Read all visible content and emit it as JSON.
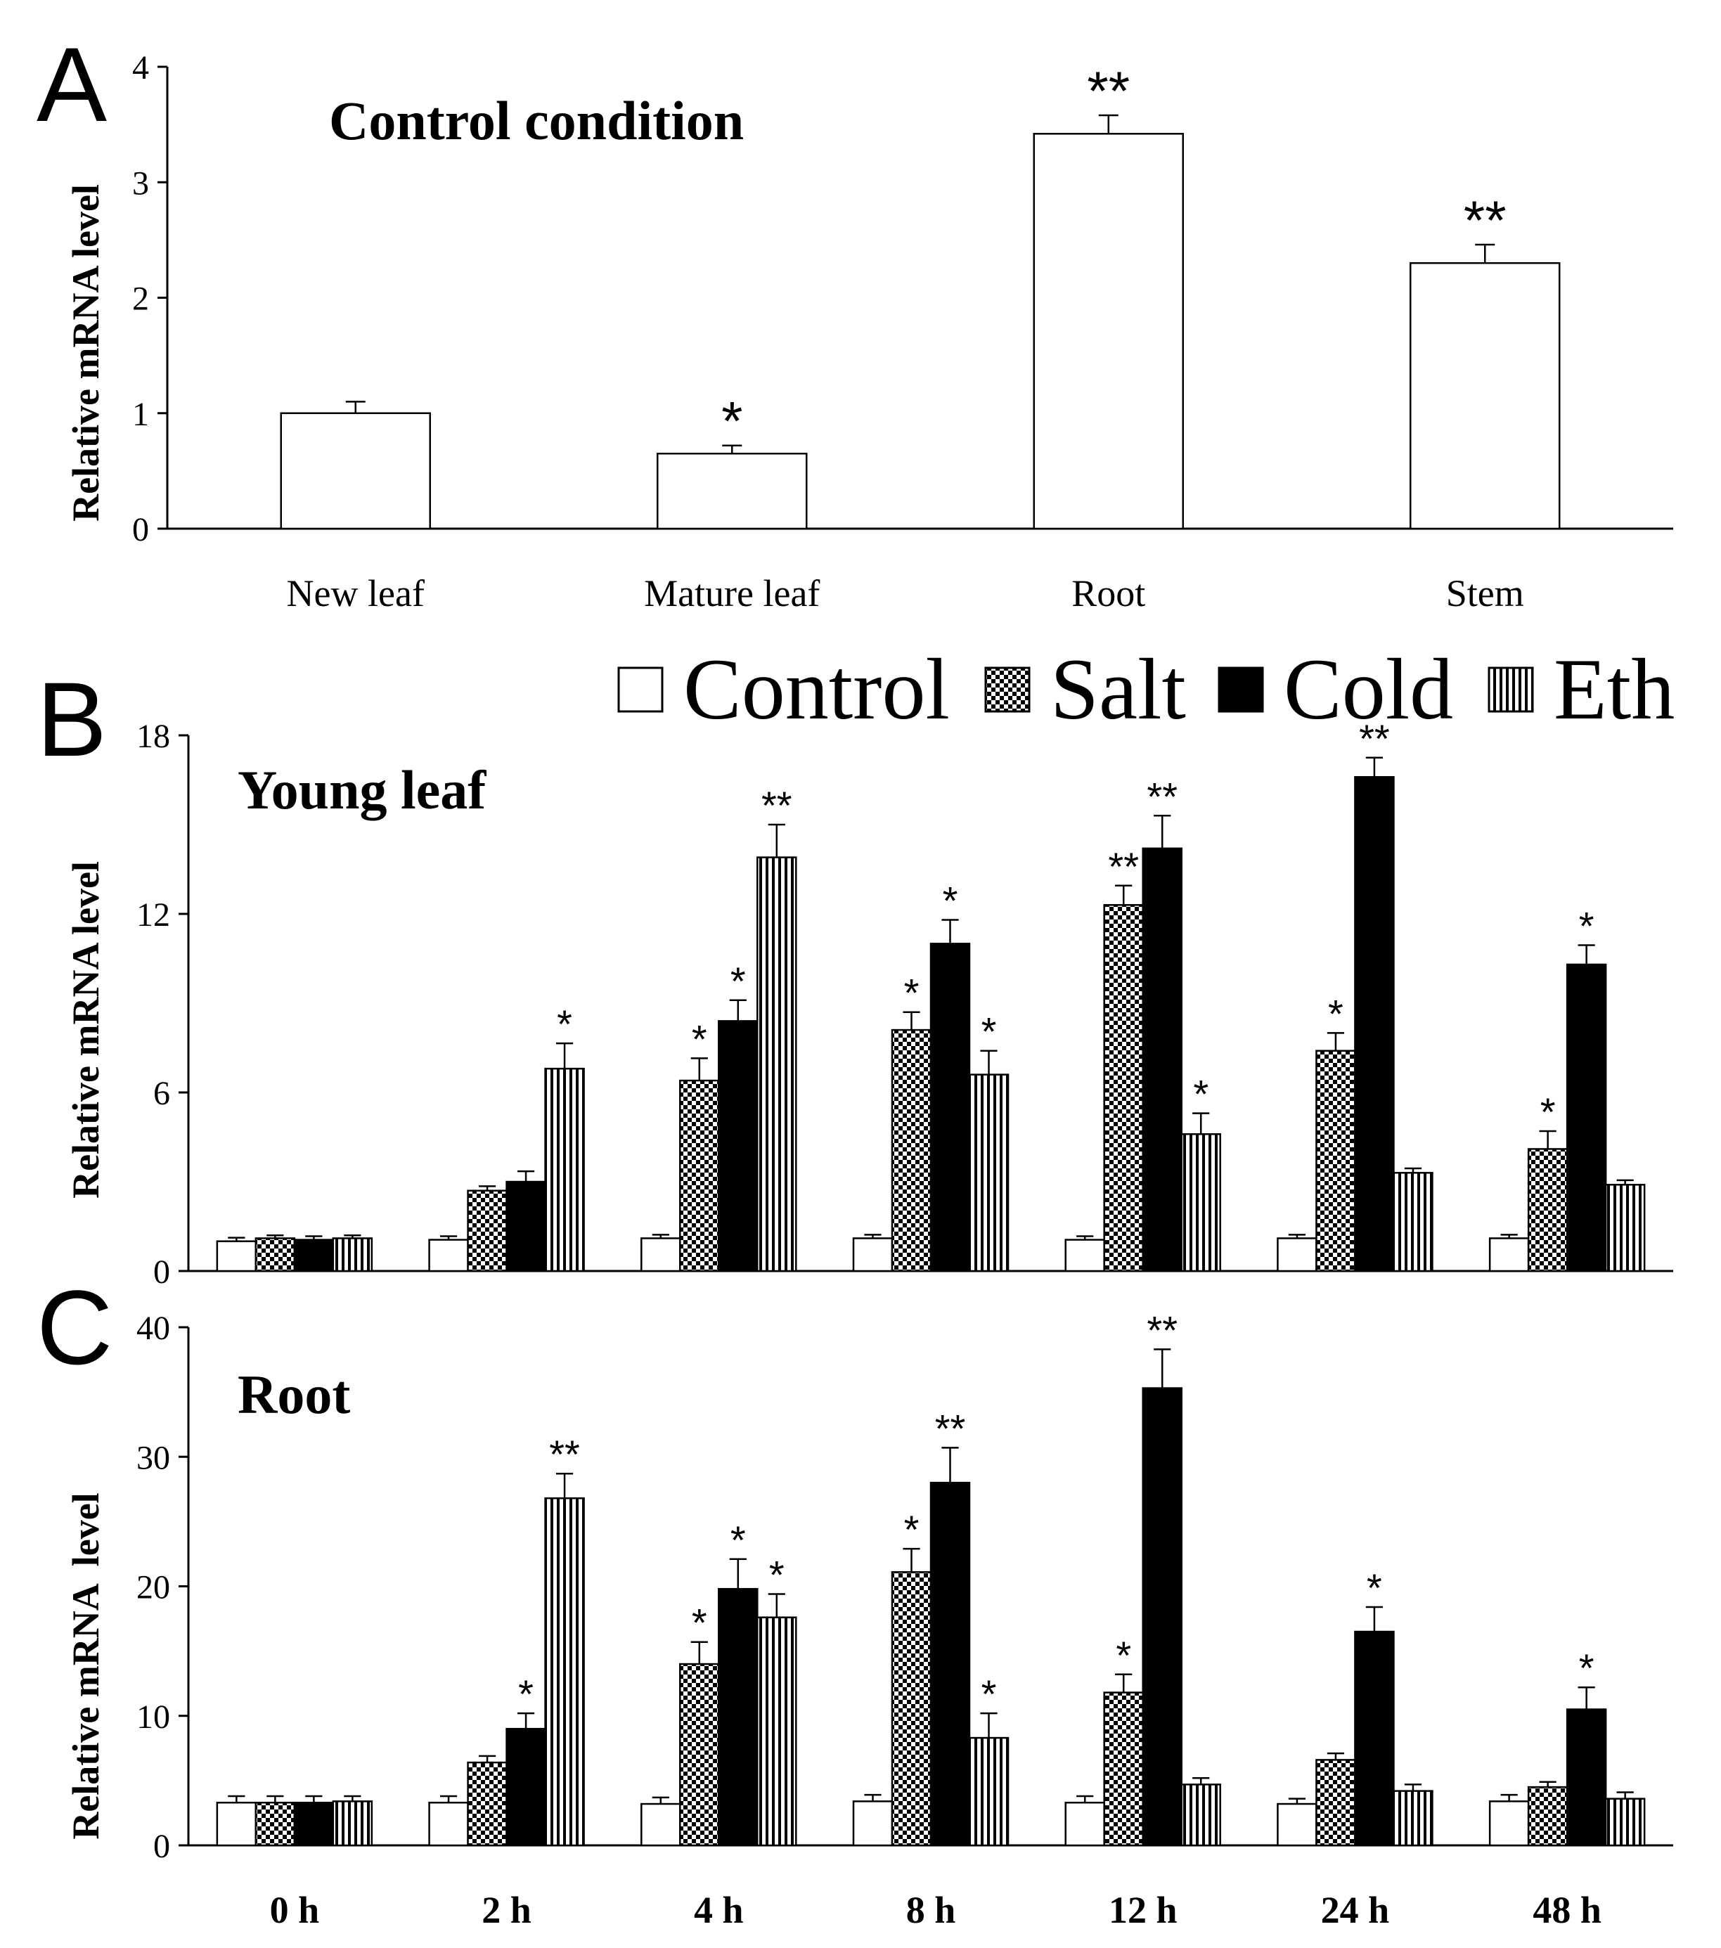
{
  "colors": {
    "ink": "#000000",
    "paper": "#ffffff"
  },
  "legend": {
    "entries": [
      {
        "label": "Control",
        "pattern": "white"
      },
      {
        "label": "Salt",
        "pattern": "checker"
      },
      {
        "label": "Cold",
        "pattern": "black"
      },
      {
        "label": "Eth",
        "pattern": "vstripes"
      }
    ]
  },
  "chart_data": [
    {
      "panel": "A",
      "type": "bar",
      "title": "Control condition",
      "ylabel": "Relative mRNA level",
      "xlabel": "",
      "ylim": [
        0,
        4
      ],
      "yticks": [
        0,
        1,
        2,
        3,
        4
      ],
      "categories": [
        "New leaf",
        "Mature leaf",
        "Root",
        "Stem"
      ],
      "series": [
        {
          "name": "Control",
          "pattern": "white",
          "values": [
            1.0,
            0.65,
            3.42,
            2.3
          ],
          "errors": [
            0.1,
            0.07,
            0.16,
            0.16
          ],
          "marks": [
            "",
            "*",
            "**",
            "**"
          ]
        }
      ]
    },
    {
      "panel": "B",
      "type": "bar",
      "title": "Young leaf",
      "ylabel": "Relative mRNA level",
      "xlabel": "",
      "ylim": [
        0,
        18
      ],
      "yticks": [
        0,
        6,
        12,
        18
      ],
      "categories": [
        "0 h",
        "2 h",
        "4 h",
        "8 h",
        "12 h",
        "24 h",
        "48 h"
      ],
      "show_category_labels": false,
      "series": [
        {
          "name": "Control",
          "pattern": "white",
          "values": [
            1.0,
            1.05,
            1.1,
            1.1,
            1.05,
            1.1,
            1.1
          ],
          "errors": [
            0.12,
            0.12,
            0.12,
            0.12,
            0.12,
            0.12,
            0.12
          ],
          "marks": [
            "",
            "",
            "",
            "",
            "",
            "",
            ""
          ]
        },
        {
          "name": "Salt",
          "pattern": "checker",
          "values": [
            1.1,
            2.7,
            6.4,
            8.1,
            12.3,
            7.4,
            4.1
          ],
          "errors": [
            0.1,
            0.15,
            0.75,
            0.6,
            0.65,
            0.6,
            0.6
          ],
          "marks": [
            "",
            "",
            "*",
            "*",
            "**",
            "*",
            "*"
          ]
        },
        {
          "name": "Cold",
          "pattern": "black",
          "values": [
            1.05,
            3.0,
            8.4,
            11.0,
            14.2,
            16.6,
            10.3
          ],
          "errors": [
            0.12,
            0.35,
            0.7,
            0.8,
            1.1,
            0.65,
            0.65
          ],
          "marks": [
            "",
            "",
            "*",
            "*",
            "**",
            "**",
            "*"
          ]
        },
        {
          "name": "Eth",
          "pattern": "vstripes",
          "values": [
            1.1,
            6.8,
            13.9,
            6.6,
            4.6,
            3.3,
            2.9
          ],
          "errors": [
            0.1,
            0.85,
            1.1,
            0.8,
            0.7,
            0.15,
            0.15
          ],
          "marks": [
            "",
            "*",
            "**",
            "*",
            "*",
            "",
            ""
          ]
        }
      ]
    },
    {
      "panel": "C",
      "type": "bar",
      "title": "Root",
      "ylabel": "Relative mRNA  level",
      "xlabel": "",
      "ylim": [
        0,
        40
      ],
      "yticks": [
        0,
        10,
        20,
        30,
        40
      ],
      "categories": [
        "0 h",
        "2 h",
        "4 h",
        "8 h",
        "12 h",
        "24 h",
        "48 h"
      ],
      "show_category_labels": true,
      "series": [
        {
          "name": "Control",
          "pattern": "white",
          "values": [
            3.3,
            3.3,
            3.2,
            3.4,
            3.3,
            3.2,
            3.4
          ],
          "errors": [
            0.5,
            0.5,
            0.5,
            0.5,
            0.5,
            0.4,
            0.5
          ],
          "marks": [
            "",
            "",
            "",
            "",
            "",
            "",
            ""
          ]
        },
        {
          "name": "Salt",
          "pattern": "checker",
          "values": [
            3.3,
            6.4,
            14.0,
            21.1,
            11.8,
            6.6,
            4.5
          ],
          "errors": [
            0.5,
            0.5,
            1.7,
            1.8,
            1.4,
            0.5,
            0.4
          ],
          "marks": [
            "",
            "",
            "*",
            "*",
            "*",
            "",
            ""
          ]
        },
        {
          "name": "Cold",
          "pattern": "black",
          "values": [
            3.3,
            9.0,
            19.8,
            28.0,
            35.3,
            16.5,
            10.5
          ],
          "errors": [
            0.5,
            1.2,
            2.3,
            2.7,
            3.0,
            1.9,
            1.7
          ],
          "marks": [
            "",
            "*",
            "*",
            "**",
            "**",
            "*",
            "*"
          ]
        },
        {
          "name": "Eth",
          "pattern": "vstripes",
          "values": [
            3.4,
            26.8,
            17.6,
            8.3,
            4.7,
            4.2,
            3.6
          ],
          "errors": [
            0.4,
            1.9,
            1.8,
            1.9,
            0.5,
            0.5,
            0.5
          ],
          "marks": [
            "",
            "**",
            "*",
            "*",
            "",
            "",
            ""
          ]
        }
      ]
    }
  ]
}
